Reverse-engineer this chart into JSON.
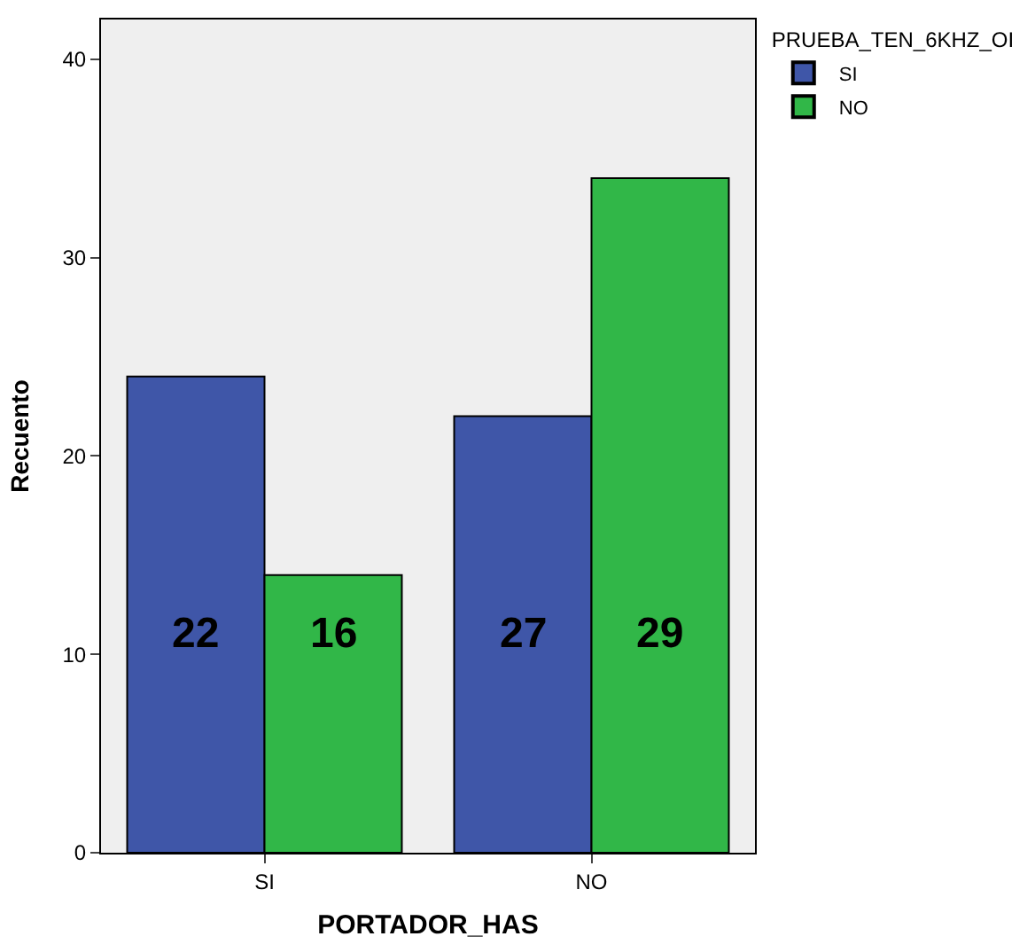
{
  "chart_data": {
    "type": "bar",
    "xlabel": "PORTADOR_HAS",
    "ylabel": "Recuento",
    "legend_title": "PRUEBA_TEN_6KHZ_OI",
    "categories": [
      "SI",
      "NO"
    ],
    "series": [
      {
        "name": "SI",
        "color": "#3f56a8",
        "values": [
          24,
          22
        ]
      },
      {
        "name": "NO",
        "color": "#31b748",
        "values": [
          14,
          34
        ]
      }
    ],
    "annotations": [
      {
        "text": "22",
        "x": "SI",
        "y": 11
      },
      {
        "text": "16",
        "x": "SI",
        "y": 11
      },
      {
        "text": "27",
        "x": "NO",
        "y": 11
      },
      {
        "text": "29",
        "x": "NO",
        "y": 11
      }
    ],
    "ylim": [
      0,
      42
    ],
    "yticks": [
      0,
      10,
      20,
      30,
      40
    ],
    "grid": false,
    "legend": "top right"
  }
}
